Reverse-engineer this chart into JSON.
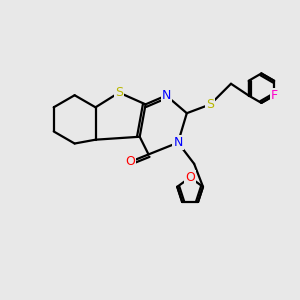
{
  "background_color": "#e8e8e8",
  "atom_colors": {
    "S": "#b8b800",
    "N": "#0000ff",
    "O": "#ff0000",
    "F": "#ff00cc",
    "C": "#000000"
  },
  "lw": 1.6,
  "font_size": 8.5,
  "figsize": [
    3.0,
    3.0
  ],
  "dpi": 100
}
